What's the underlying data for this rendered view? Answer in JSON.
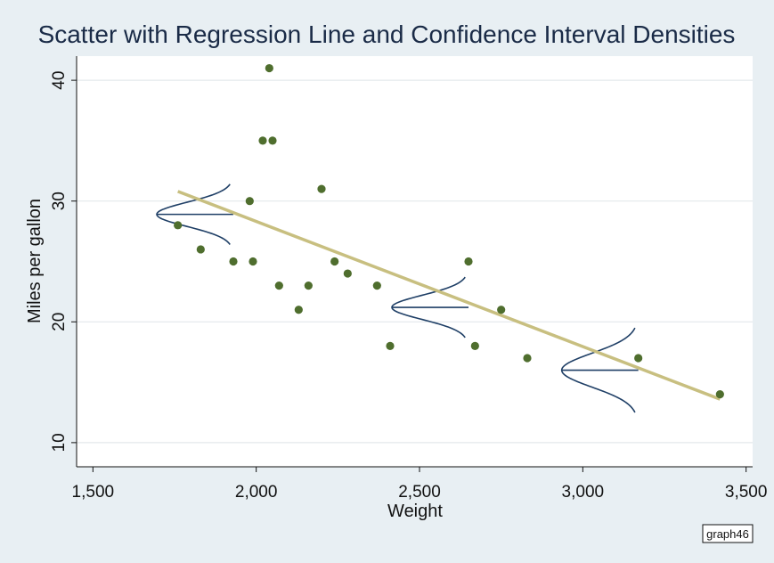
{
  "chart_data": {
    "type": "scatter",
    "title": "Scatter with Regression Line and Confidence Interval Densities",
    "xlabel": "Weight",
    "ylabel": "Miles per gallon",
    "xlim": [
      1450,
      3520
    ],
    "ylim": [
      8,
      42
    ],
    "xticks": [
      1500,
      2000,
      2500,
      3000,
      3500
    ],
    "xtick_labels": [
      "1,500",
      "2,000",
      "2,500",
      "3,000",
      "3,500"
    ],
    "yticks": [
      10,
      20,
      30,
      40
    ],
    "ytick_labels": [
      "10",
      "20",
      "30",
      "40"
    ],
    "grid": "horizontal",
    "colors": {
      "points": "#4f6e2e",
      "fit_line": "#c8bf80",
      "density": "#1f3f66",
      "grid": "#e3e8ec",
      "plot_bg": "#ffffff",
      "outer_bg": "#e8eff3"
    },
    "points": [
      {
        "x": 1760,
        "y": 28
      },
      {
        "x": 1830,
        "y": 26
      },
      {
        "x": 1930,
        "y": 25
      },
      {
        "x": 1980,
        "y": 30
      },
      {
        "x": 1990,
        "y": 25
      },
      {
        "x": 2020,
        "y": 35
      },
      {
        "x": 2040,
        "y": 41
      },
      {
        "x": 2050,
        "y": 35
      },
      {
        "x": 2070,
        "y": 23
      },
      {
        "x": 2130,
        "y": 21
      },
      {
        "x": 2160,
        "y": 23
      },
      {
        "x": 2200,
        "y": 31
      },
      {
        "x": 2240,
        "y": 25
      },
      {
        "x": 2280,
        "y": 24
      },
      {
        "x": 2370,
        "y": 23
      },
      {
        "x": 2410,
        "y": 18
      },
      {
        "x": 2650,
        "y": 25
      },
      {
        "x": 2670,
        "y": 18
      },
      {
        "x": 2750,
        "y": 21
      },
      {
        "x": 2830,
        "y": 17
      },
      {
        "x": 3170,
        "y": 17
      },
      {
        "x": 3420,
        "y": 14
      }
    ],
    "fit_line": {
      "x": [
        1760,
        3420
      ],
      "y": [
        30.8,
        13.6
      ]
    },
    "densities": [
      {
        "x": 1930,
        "center": 28.9,
        "sd": 1.0,
        "span": 5
      },
      {
        "x": 2650,
        "center": 21.2,
        "sd": 1.0,
        "span": 5
      },
      {
        "x": 3170,
        "center": 16.0,
        "sd": 1.4,
        "span": 7
      }
    ],
    "note": "graph46"
  }
}
